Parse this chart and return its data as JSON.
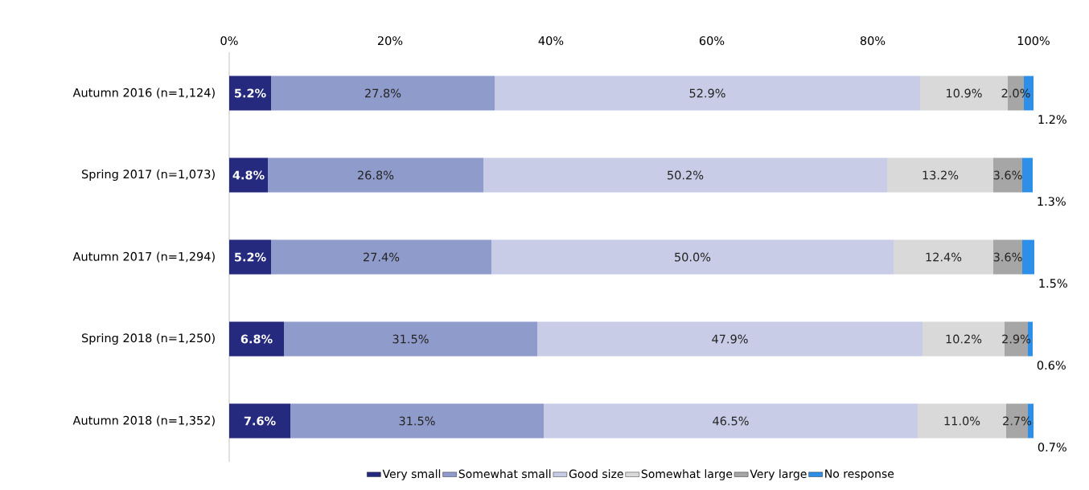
{
  "chart_data": {
    "type": "bar",
    "orientation": "horizontal",
    "stacked": true,
    "categories": [
      "Autumn 2016 (n=1,124)",
      "Spring 2017 (n=1,073)",
      "Autumn 2017 (n=1,294)",
      "Spring 2018 (n=1,250)",
      "Autumn 2018 (n=1,352)"
    ],
    "series": [
      {
        "name": "Very small",
        "color": "#262a7e",
        "values": [
          5.2,
          4.8,
          5.2,
          6.8,
          7.6
        ],
        "value_labels": [
          "5.2%",
          "4.8%",
          "5.2%",
          "6.8%",
          "7.6%"
        ]
      },
      {
        "name": "Somewhat small",
        "color": "#8f9bcb",
        "values": [
          27.8,
          26.8,
          27.4,
          31.5,
          31.5
        ],
        "value_labels": [
          "27.8%",
          "26.8%",
          "27.4%",
          "31.5%",
          "31.5%"
        ]
      },
      {
        "name": "Good size",
        "color": "#c8cce6",
        "values": [
          52.9,
          50.2,
          50.0,
          47.9,
          46.5
        ],
        "value_labels": [
          "52.9%",
          "50.2%",
          "50.0%",
          "47.9%",
          "46.5%"
        ]
      },
      {
        "name": "Somewhat large",
        "color": "#d9d9d9",
        "values": [
          10.9,
          13.2,
          12.4,
          10.2,
          11.0
        ],
        "value_labels": [
          "10.9%",
          "13.2%",
          "12.4%",
          "10.2%",
          "11.0%"
        ]
      },
      {
        "name": "Very large",
        "color": "#a6a6a6",
        "values": [
          2.0,
          3.6,
          3.6,
          2.9,
          2.7
        ],
        "value_labels": [
          "2.0%",
          "3.6%",
          "3.6%",
          "2.9%",
          "2.7%"
        ]
      },
      {
        "name": "No response",
        "color": "#2e8fe8",
        "values": [
          1.2,
          1.3,
          1.5,
          0.6,
          0.7
        ],
        "value_labels": [
          "1.2%",
          "1.3%",
          "1.5%",
          "0.6%",
          "0.7%"
        ]
      }
    ],
    "xlim": [
      0,
      100
    ],
    "xticks": [
      {
        "value": 0,
        "label": "0%"
      },
      {
        "value": 20,
        "label": "20%"
      },
      {
        "value": 40,
        "label": "40%"
      },
      {
        "value": 60,
        "label": "60%"
      },
      {
        "value": 80,
        "label": "80%"
      },
      {
        "value": 100,
        "label": "100%"
      }
    ],
    "grid": false,
    "legend": "bottom"
  }
}
